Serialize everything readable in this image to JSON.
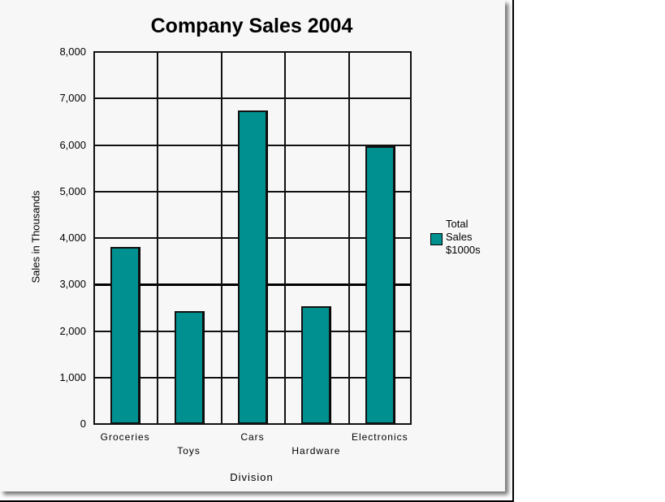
{
  "chart_data": {
    "type": "bar",
    "title": "Company Sales 2004",
    "xlabel": "Division",
    "ylabel": "Sales in Thousands",
    "categories": [
      "Groceries",
      "Toys",
      "Cars",
      "Hardware",
      "Electronics"
    ],
    "series": [
      {
        "name": "Total Sales $1000s",
        "values": [
          3800,
          2430,
          6750,
          2530,
          5970
        ],
        "color": "#009090"
      }
    ],
    "ylim": [
      0,
      8000
    ],
    "yticks": [
      "0",
      "1,000",
      "2,000",
      "3,000",
      "4,000",
      "5,000",
      "6,000",
      "7,000",
      "8,000"
    ],
    "reference_line": 3000,
    "grid": true,
    "legend_position": "right"
  },
  "legend": {
    "line1": "Total",
    "line2": "Sales",
    "line3": "$1000s"
  }
}
